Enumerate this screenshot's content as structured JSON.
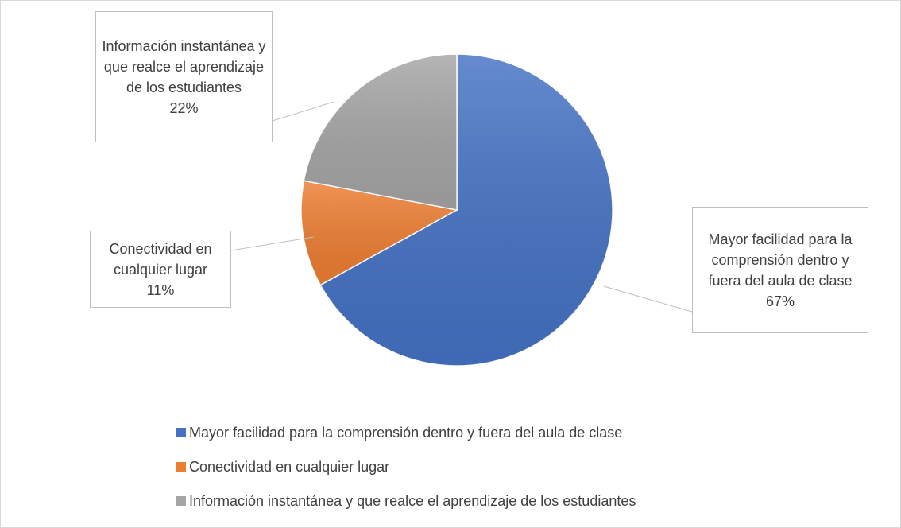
{
  "chart_data": {
    "type": "pie",
    "categories": [
      "Mayor facilidad para la comprensión dentro y fuera del aula de clase",
      "Conectividad en cualquier lugar",
      "Información instantánea y que realce el aprendizaje de los estudiantes"
    ],
    "values": [
      67,
      11,
      22
    ],
    "value_labels": [
      "67%",
      "11%",
      "22%"
    ],
    "colors": [
      "#4472c4",
      "#ed7d31",
      "#a5a5a5"
    ],
    "legend": "bottom"
  }
}
